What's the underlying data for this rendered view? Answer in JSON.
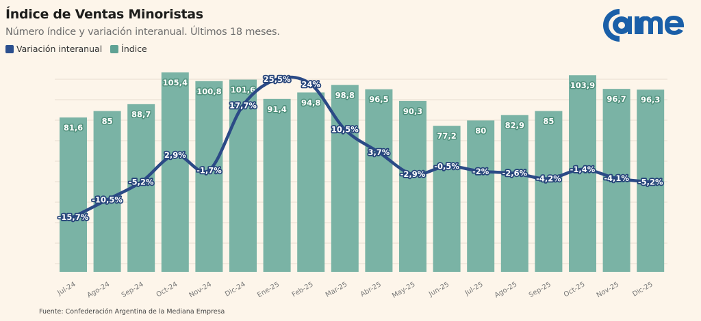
{
  "header": {
    "title": "Índice de Ventas Minoristas",
    "subtitle": "Número índice y variación interanual. Últimos 18 meses.",
    "logo_text": "came"
  },
  "legend": [
    {
      "label": "Variación interanual",
      "color": "#2b4f8e"
    },
    {
      "label": "Índice",
      "color": "#5fa294"
    }
  ],
  "footer": {
    "source": "Fuente: Confederación Argentina de la Mediana Empresa"
  },
  "colors": {
    "bar": "#7ab3a5",
    "line": "#2b4a86",
    "background": "#fdf5ea",
    "grid": "#e6ddd0",
    "logo": "#1a5fa8"
  },
  "chart_data": {
    "type": "bar",
    "title": "Índice de Ventas Minoristas",
    "subtitle": "Número índice y variación interanual. Últimos 18 meses.",
    "xlabel": "",
    "ylabel": "",
    "categories": [
      "Jul-24",
      "Ago-24",
      "Sep-24",
      "Oct-24",
      "Nov-24",
      "Dic-24",
      "Ene-25",
      "Feb-25",
      "Mar-25",
      "Abr-25",
      "May-25",
      "Jun-25",
      "Jul-25",
      "Ago-25",
      "Sep-25",
      "Oct-25",
      "Nov-25",
      "Dic-25"
    ],
    "series": [
      {
        "name": "Índice",
        "type": "bar",
        "values": [
          81.6,
          85,
          88.7,
          105.4,
          100.8,
          101.6,
          91.4,
          94.8,
          98.8,
          96.5,
          90.3,
          77.2,
          80,
          82.9,
          85,
          103.9,
          96.7,
          96.3
        ],
        "labels": [
          "81,6",
          "85",
          "88,7",
          "105,4",
          "100,8",
          "101,6",
          "91,4",
          "94,8",
          "98,8",
          "96,5",
          "90,3",
          "77,2",
          "80",
          "82,9",
          "85",
          "103,9",
          "96,7",
          "96,3"
        ]
      },
      {
        "name": "Variación interanual",
        "type": "line",
        "unit": "%",
        "values": [
          -15.7,
          -10.5,
          -5.2,
          2.9,
          -1.7,
          17.7,
          25.5,
          24,
          10.5,
          3.7,
          -2.9,
          -0.5,
          -2,
          -2.6,
          -4.2,
          -1.4,
          -4.1,
          -5.2
        ],
        "labels": [
          "-15,7%",
          "-10,5%",
          "-5,2%",
          "2,9%",
          "-1,7%",
          "17,7%",
          "25,5%",
          "24%",
          "10,5%",
          "3,7%",
          "-2,9%",
          "-0,5%",
          "-2%",
          "-2,6%",
          "-4,2%",
          "-1,4%",
          "-4,1%",
          "-5,2%"
        ]
      }
    ],
    "ylim_bars": [
      0,
      110
    ],
    "grid": true,
    "legend_position": "top-left",
    "source": "Fuente: Confederación Argentina de la Mediana Empresa"
  }
}
